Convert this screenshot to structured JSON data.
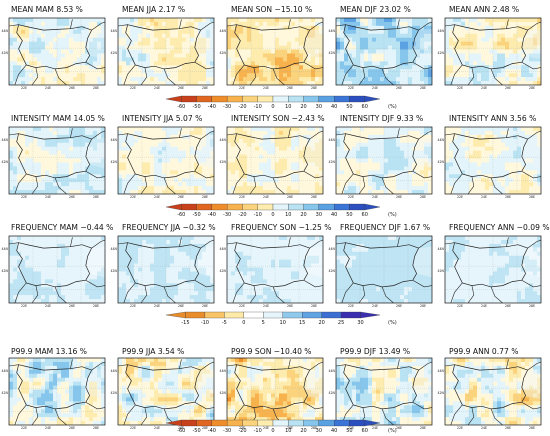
{
  "chart_data": {
    "type": "heatmap",
    "description_units": "(%)",
    "x_ticks": [
      "22E",
      "24E",
      "26E",
      "28E"
    ],
    "y_ticks": [
      "44N",
      "42N"
    ],
    "seasons": [
      "MAM",
      "JJA",
      "SON",
      "DJF",
      "ANN"
    ],
    "rows": [
      {
        "name": "MEAN",
        "colorbar": {
          "ticks": [
            "-60",
            "-50",
            "-40",
            "-30",
            "-20",
            "-10",
            "0",
            "10",
            "20",
            "30",
            "40",
            "50",
            "60"
          ],
          "unit": "(%)",
          "colors": [
            "#c8401c",
            "#e1661f",
            "#ee8d2a",
            "#f7b24d",
            "#fbd37d",
            "#fdecae",
            "#fff8dc",
            "#e3f4fa",
            "#b9e3f3",
            "#86c6ec",
            "#5aa1e3",
            "#3a74d6",
            "#2b4fbe"
          ]
        },
        "panels": [
          {
            "label": "MEAN MAM",
            "value": "8.53"
          },
          {
            "label": "MEAN JJA",
            "value": "2.17"
          },
          {
            "label": "MEAN SON",
            "value": "−15.10"
          },
          {
            "label": "MEAN DJF",
            "value": "23.02"
          },
          {
            "label": "MEAN ANN",
            "value": "2.48"
          }
        ]
      },
      {
        "name": "INTENSITY",
        "colorbar": {
          "ticks": [
            "-60",
            "-50",
            "-40",
            "-30",
            "-20",
            "-10",
            "0",
            "10",
            "20",
            "30",
            "40",
            "50",
            "60"
          ],
          "unit": "(%)",
          "colors": [
            "#c8401c",
            "#e1661f",
            "#ee8d2a",
            "#f7b24d",
            "#fbd37d",
            "#fdecae",
            "#fff8dc",
            "#e3f4fa",
            "#b9e3f3",
            "#86c6ec",
            "#5aa1e3",
            "#3a74d6",
            "#2b4fbe"
          ]
        },
        "panels": [
          {
            "label": "INTENSITY MAM",
            "value": "14.05"
          },
          {
            "label": "INTENSITY JJA",
            "value": "5.07"
          },
          {
            "label": "INTENSITY SON",
            "value": "−2.43"
          },
          {
            "label": "INTENSITY DJF",
            "value": "9.33"
          },
          {
            "label": "INTENSITY ANN",
            "value": "3.56"
          }
        ]
      },
      {
        "name": "FREQUENCY",
        "colorbar": {
          "ticks": [
            "-15",
            "-10",
            "-5",
            "0",
            "5",
            "10",
            "15",
            "20",
            "25",
            "30"
          ],
          "unit": "(%)",
          "colors": [
            "#e98d2c",
            "#f8c468",
            "#fde9a8",
            "#ffffff",
            "#e6f5fb",
            "#bfe4f3",
            "#8fc9ec",
            "#5fa3e2",
            "#3d6fd3",
            "#3a2fae"
          ]
        },
        "panels": [
          {
            "label": "FREQUENCY MAM",
            "value": "−0.44"
          },
          {
            "label": "FREQUENCY JJA",
            "value": "−0.32"
          },
          {
            "label": "FREQUENCY SON",
            "value": "−1.25"
          },
          {
            "label": "FREQUENCY DJF",
            "value": "1.67"
          },
          {
            "label": "FREQUENCY ANN",
            "value": "−0.09"
          }
        ]
      },
      {
        "name": "P99.9",
        "colorbar": {
          "ticks": [
            "-60",
            "-50",
            "-40",
            "-30",
            "-20",
            "-10",
            "0",
            "10",
            "20",
            "30",
            "40",
            "50",
            "60"
          ],
          "unit": "(%)",
          "colors": [
            "#c8401c",
            "#e1661f",
            "#ee8d2a",
            "#f7b24d",
            "#fbd37d",
            "#fdecae",
            "#fff8dc",
            "#e3f4fa",
            "#b9e3f3",
            "#86c6ec",
            "#5aa1e3",
            "#3a74d6",
            "#2b4fbe"
          ]
        },
        "panels": [
          {
            "label": "P99.9 MAM",
            "value": "13.16"
          },
          {
            "label": "P99.9 JJA",
            "value": "3.54"
          },
          {
            "label": "P99.9 SON",
            "value": "−10.40"
          },
          {
            "label": "P99.9 DJF",
            "value": "13.49"
          },
          {
            "label": "P99.9 ANN",
            "value": "0.77"
          }
        ]
      }
    ]
  }
}
